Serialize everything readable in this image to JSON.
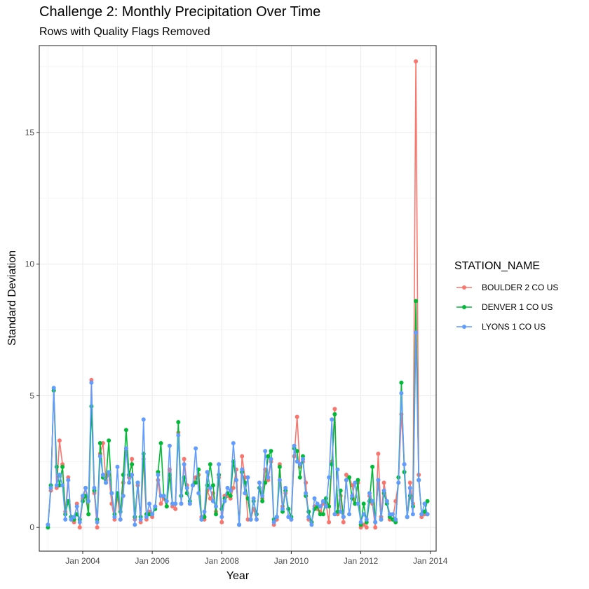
{
  "chart_data": {
    "type": "line",
    "title": "Challenge 2: Monthly Precipitation Over Time",
    "subtitle": "Rows with Quality Flags Removed",
    "xlabel": "Year",
    "ylabel": "Standard Deviation",
    "x_ticks": [
      "Jan 2004",
      "Jan 2006",
      "Jan 2008",
      "Jan 2010",
      "Jan 2012",
      "Jan 2014"
    ],
    "y_ticks": [
      0,
      5,
      10,
      15
    ],
    "ylim": [
      -0.9,
      18.3
    ],
    "xlim": [
      "2002-10",
      "2014-03"
    ],
    "grid": true,
    "legend": {
      "title": "STATION_NAME",
      "placement": "right"
    },
    "x": [
      "2003-01",
      "2003-02",
      "2003-03",
      "2003-04",
      "2003-05",
      "2003-06",
      "2003-07",
      "2003-08",
      "2003-09",
      "2003-10",
      "2003-11",
      "2003-12",
      "2004-01",
      "2004-02",
      "2004-03",
      "2004-04",
      "2004-05",
      "2004-06",
      "2004-07",
      "2004-08",
      "2004-09",
      "2004-10",
      "2004-11",
      "2004-12",
      "2005-01",
      "2005-02",
      "2005-03",
      "2005-04",
      "2005-05",
      "2005-06",
      "2005-07",
      "2005-08",
      "2005-09",
      "2005-10",
      "2005-11",
      "2005-12",
      "2006-01",
      "2006-02",
      "2006-03",
      "2006-04",
      "2006-05",
      "2006-06",
      "2006-07",
      "2006-08",
      "2006-09",
      "2006-10",
      "2006-11",
      "2006-12",
      "2007-01",
      "2007-02",
      "2007-03",
      "2007-04",
      "2007-05",
      "2007-06",
      "2007-07",
      "2007-08",
      "2007-09",
      "2007-10",
      "2007-11",
      "2007-12",
      "2008-01",
      "2008-02",
      "2008-03",
      "2008-04",
      "2008-05",
      "2008-06",
      "2008-07",
      "2008-08",
      "2008-09",
      "2008-10",
      "2008-11",
      "2008-12",
      "2009-01",
      "2009-02",
      "2009-03",
      "2009-04",
      "2009-05",
      "2009-06",
      "2009-07",
      "2009-08",
      "2009-09",
      "2009-10",
      "2009-11",
      "2009-12",
      "2010-01",
      "2010-02",
      "2010-03",
      "2010-04",
      "2010-05",
      "2010-06",
      "2010-07",
      "2010-08",
      "2010-09",
      "2010-10",
      "2010-11",
      "2010-12",
      "2011-01",
      "2011-02",
      "2011-03",
      "2011-04",
      "2011-05",
      "2011-06",
      "2011-07",
      "2011-08",
      "2011-09",
      "2011-10",
      "2011-11",
      "2011-12",
      "2012-01",
      "2012-02",
      "2012-03",
      "2012-04",
      "2012-05",
      "2012-06",
      "2012-07",
      "2012-08",
      "2012-09",
      "2012-10",
      "2012-11",
      "2012-12",
      "2013-01",
      "2013-02",
      "2013-03",
      "2013-04",
      "2013-05",
      "2013-06",
      "2013-07",
      "2013-08",
      "2013-09",
      "2013-10",
      "2013-11",
      "2013-12"
    ],
    "series": [
      {
        "name": "BOULDER 2 CO US",
        "color": "#F8766D",
        "values": [
          0.1,
          1.4,
          5.2,
          1.5,
          3.3,
          2.4,
          0.6,
          1.9,
          0.3,
          0.2,
          0.9,
          0.0,
          1.1,
          1.5,
          0.5,
          5.6,
          1.3,
          0.0,
          2.8,
          3.2,
          1.8,
          2.0,
          0.9,
          0.3,
          1.2,
          0.3,
          1.7,
          3.0,
          1.9,
          2.6,
          0.3,
          1.6,
          0.2,
          2.6,
          0.3,
          0.6,
          0.4,
          0.8,
          1.8,
          0.9,
          1.1,
          0.8,
          2.2,
          0.8,
          0.7,
          3.6,
          0.9,
          2.6,
          1.6,
          0.9,
          1.6,
          1.9,
          2.0,
          0.4,
          0.3,
          1.4,
          1.1,
          1.3,
          0.6,
          1.9,
          0.2,
          1.2,
          1.2,
          1.1,
          1.5,
          2.2,
          0.1,
          2.7,
          1.9,
          0.3,
          0.3,
          0.7,
          0.3,
          1.7,
          1.1,
          2.2,
          1.8,
          2.5,
          0.1,
          0.3,
          2.4,
          0.8,
          1.3,
          0.7,
          0.3,
          2.7,
          4.2,
          2.3,
          2.5,
          1.7,
          0.3,
          0.2,
          0.8,
          0.7,
          0.6,
          0.9,
          0.9,
          0.2,
          2.5,
          4.5,
          0.5,
          1.2,
          0.2,
          2.0,
          1.9,
          1.6,
          0.9,
          1.7,
          0.0,
          0.1,
          0.0,
          1.2,
          0.9,
          0.0,
          2.8,
          0.4,
          1.7,
          1.0,
          0.3,
          0.3,
          1.0,
          1.7,
          4.3,
          2.4,
          0.4,
          1.7,
          0.9,
          17.7,
          2.0,
          0.4,
          0.5,
          0.5
        ]
      },
      {
        "name": "DENVER 1 CO US",
        "color": "#00BA38",
        "values": [
          0.0,
          1.6,
          5.2,
          2.3,
          1.6,
          2.3,
          0.5,
          1.0,
          0.4,
          0.3,
          0.5,
          0.3,
          1.0,
          1.2,
          0.5,
          4.6,
          1.4,
          0.3,
          3.2,
          1.9,
          1.7,
          3.3,
          1.3,
          0.5,
          1.3,
          0.6,
          2.0,
          3.7,
          2.0,
          2.4,
          0.4,
          1.7,
          0.4,
          2.8,
          0.5,
          0.5,
          0.5,
          0.7,
          2.1,
          3.2,
          1.2,
          0.8,
          2.0,
          0.9,
          0.9,
          4.0,
          1.2,
          1.9,
          1.3,
          1.0,
          1.6,
          1.7,
          2.2,
          0.3,
          0.4,
          1.6,
          2.4,
          1.6,
          0.5,
          2.0,
          0.7,
          1.1,
          1.3,
          1.2,
          2.5,
          1.8,
          0.1,
          2.1,
          1.7,
          1.1,
          0.3,
          1.0,
          0.5,
          1.5,
          1.0,
          1.7,
          2.7,
          2.9,
          0.3,
          0.4,
          2.3,
          0.6,
          1.4,
          0.7,
          0.4,
          3.0,
          2.9,
          1.9,
          2.7,
          1.2,
          0.6,
          0.2,
          0.7,
          0.8,
          0.5,
          0.5,
          1.1,
          0.8,
          2.4,
          4.3,
          0.6,
          1.4,
          0.4,
          1.8,
          1.9,
          1.1,
          0.9,
          1.8,
          0.1,
          0.9,
          0.2,
          1.0,
          2.3,
          0.2,
          1.8,
          0.3,
          1.3,
          0.9,
          0.4,
          0.3,
          0.2,
          1.9,
          5.5,
          2.1,
          0.4,
          1.2,
          0.8,
          8.6,
          1.8,
          0.5,
          0.6,
          1.0
        ]
      },
      {
        "name": "LYONS 1 CO US",
        "color": "#619CFF",
        "values": [
          0.1,
          1.5,
          5.3,
          1.6,
          2.0,
          1.6,
          0.3,
          1.8,
          0.3,
          0.4,
          0.8,
          0.2,
          1.2,
          1.5,
          1.0,
          5.5,
          1.5,
          0.2,
          2.7,
          2.0,
          1.7,
          2.1,
          1.3,
          0.4,
          2.3,
          0.3,
          1.2,
          3.0,
          1.7,
          2.0,
          0.1,
          1.7,
          0.3,
          4.1,
          0.4,
          0.9,
          0.5,
          0.8,
          2.0,
          1.2,
          1.2,
          1.0,
          3.1,
          0.9,
          0.9,
          3.5,
          0.9,
          2.4,
          1.5,
          0.9,
          1.6,
          3.0,
          1.3,
          0.3,
          0.6,
          2.1,
          1.5,
          1.0,
          0.8,
          2.4,
          0.4,
          1.0,
          1.5,
          1.4,
          3.2,
          1.8,
          0.1,
          2.2,
          1.3,
          1.9,
          0.3,
          1.1,
          0.3,
          1.7,
          1.2,
          2.9,
          1.9,
          2.6,
          0.2,
          0.4,
          1.8,
          0.7,
          1.5,
          0.4,
          0.3,
          3.1,
          2.5,
          2.4,
          2.6,
          1.3,
          0.4,
          0.1,
          1.1,
          0.9,
          0.8,
          1.0,
          0.8,
          1.9,
          4.1,
          0.5,
          2.2,
          0.6,
          0.4,
          1.8,
          0.5,
          1.2,
          1.7,
          0.9,
          0.2,
          0.5,
          0.3,
          1.3,
          1.0,
          0.2,
          1.8,
          0.3,
          1.4,
          1.0,
          0.5,
          0.5,
          0.3,
          1.7,
          5.1,
          2.4,
          0.4,
          1.5,
          0.5,
          7.4,
          1.8,
          0.5,
          0.9,
          0.5
        ]
      }
    ]
  }
}
